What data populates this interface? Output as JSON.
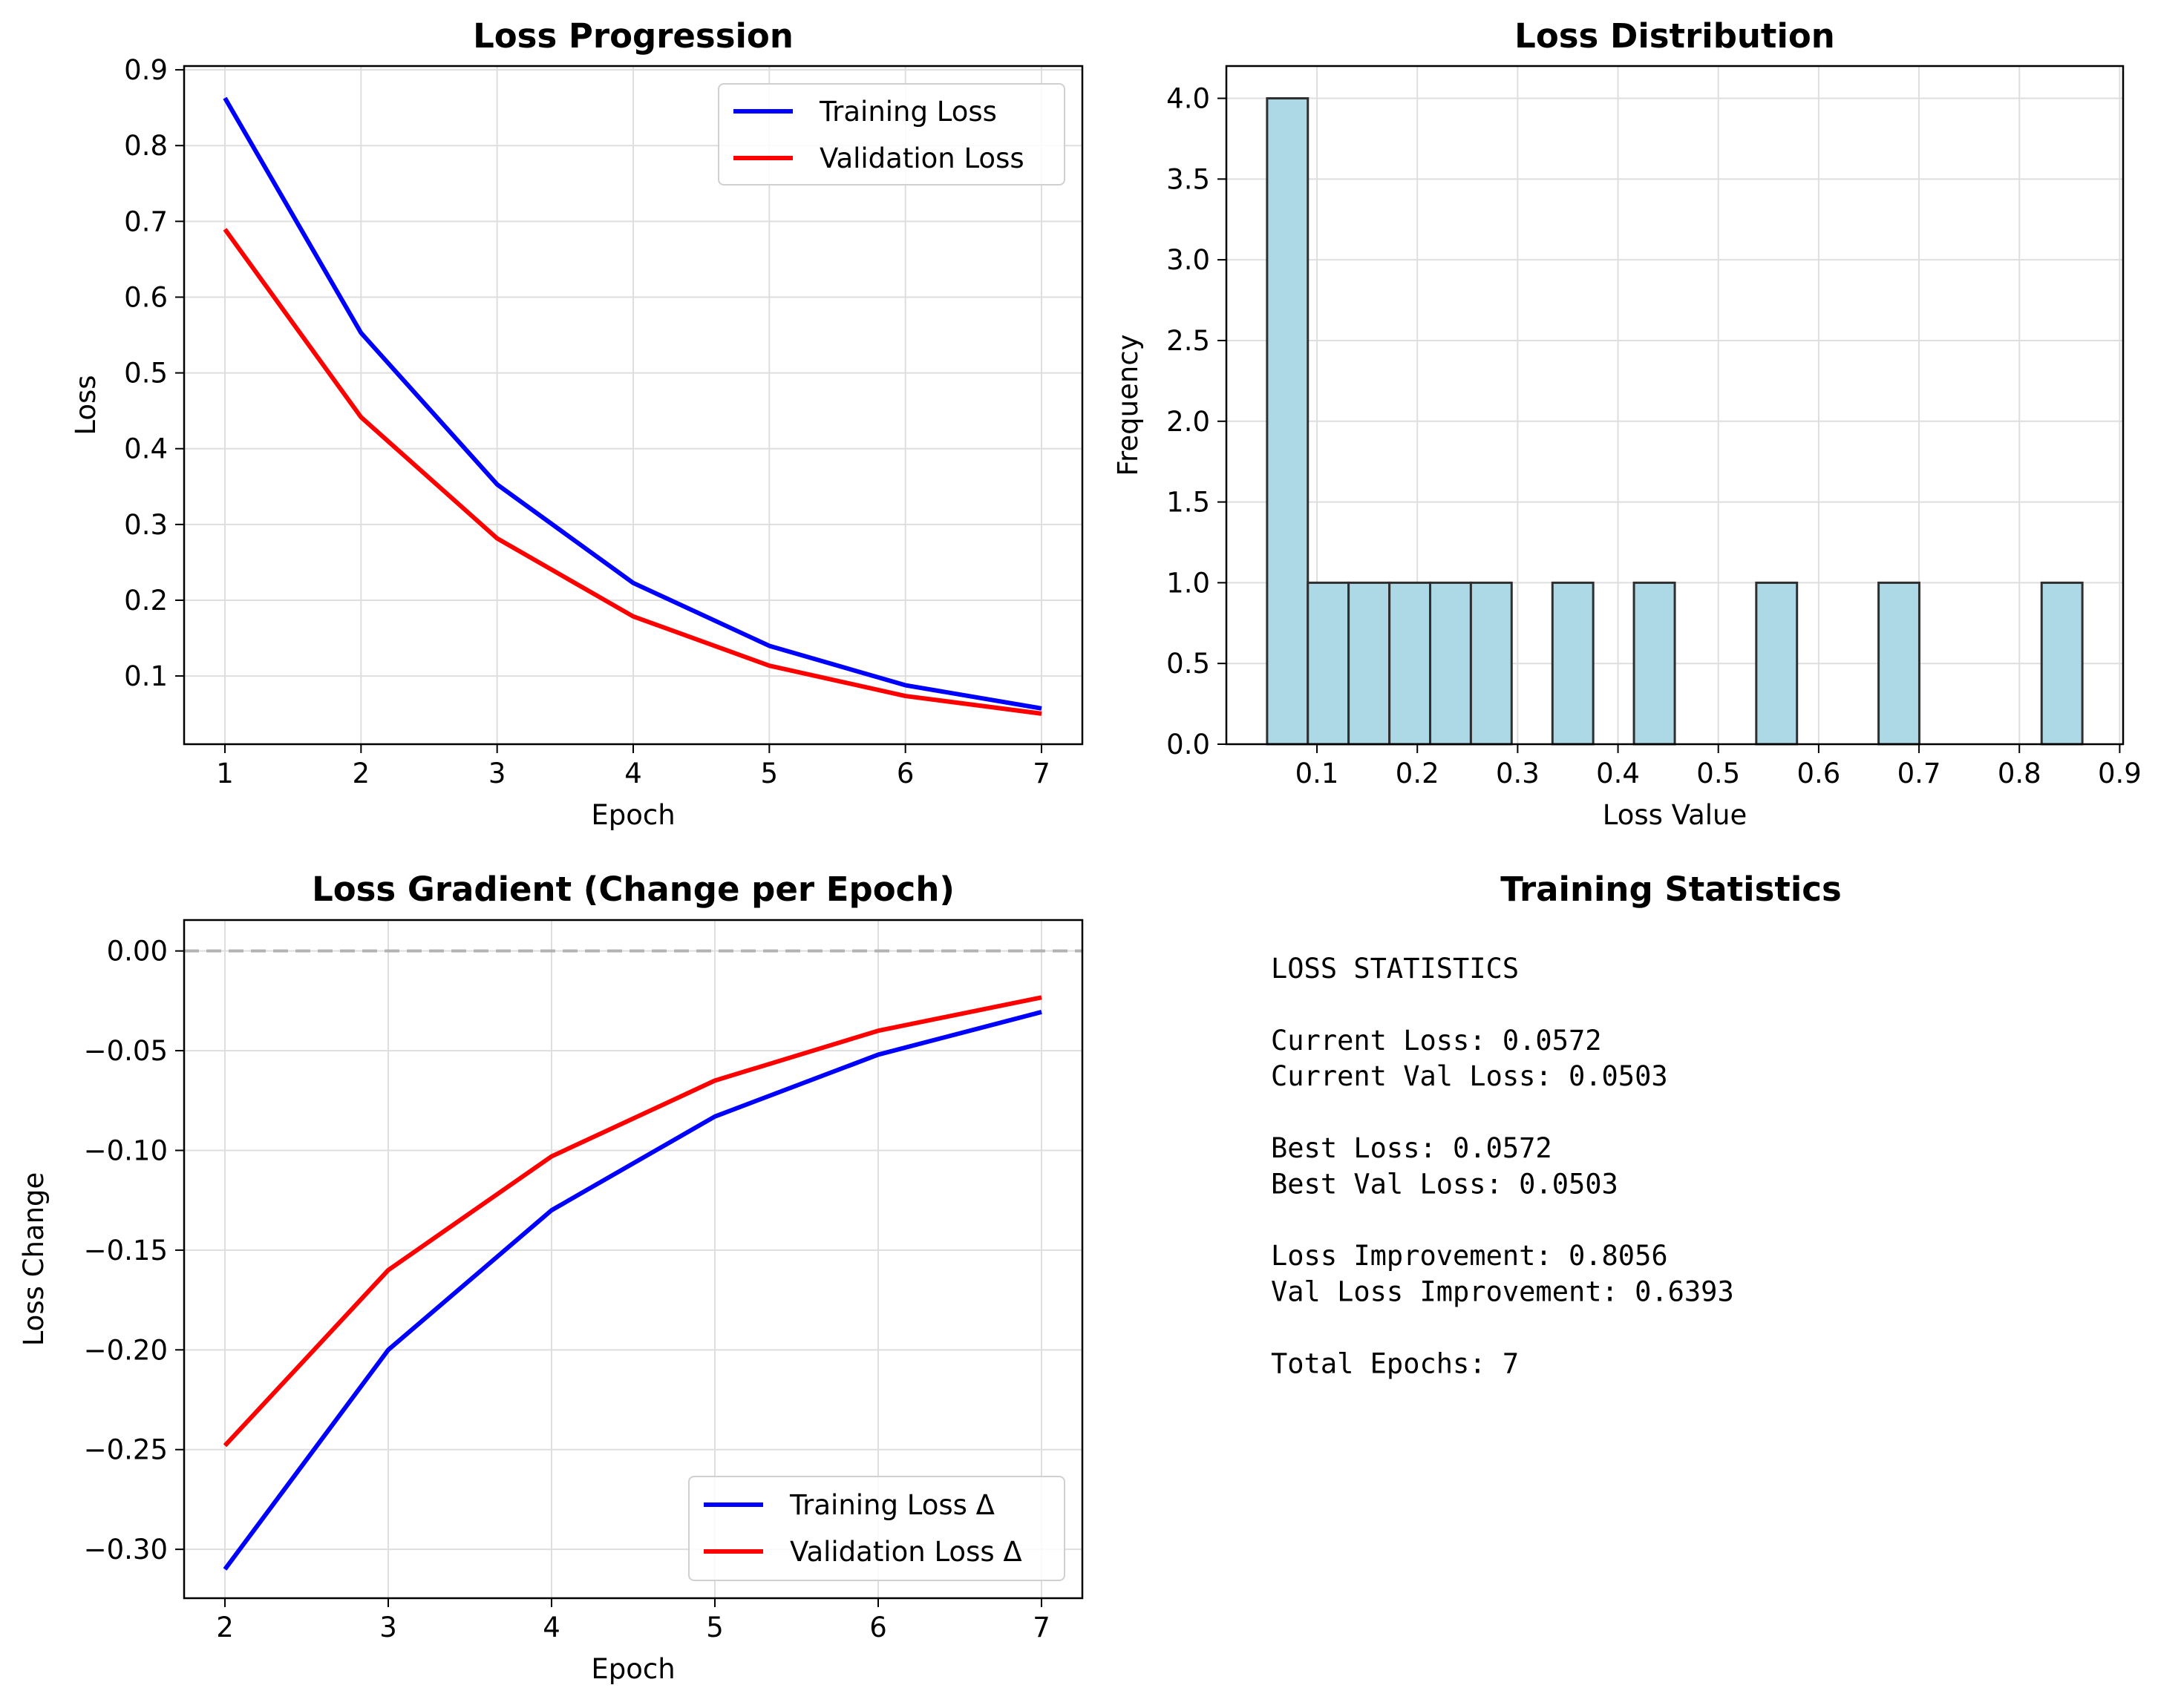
{
  "colors": {
    "training": "#0000ff",
    "validation": "#ff0000",
    "hist_fill": "#add8e6",
    "hist_edge": "#2f2f2f",
    "grid": "#dedede",
    "zero_line": "#b3b3b3"
  },
  "chart_data": [
    {
      "type": "line",
      "title": "Loss Progression",
      "xlabel": "Epoch",
      "ylabel": "Loss",
      "x": [
        1,
        2,
        3,
        4,
        5,
        6,
        7
      ],
      "xlim": [
        0.7,
        7.3
      ],
      "ylim": [
        0.01,
        0.905
      ],
      "xticks": [
        1,
        2,
        3,
        4,
        5,
        6,
        7
      ],
      "yticks": [
        0.1,
        0.2,
        0.3,
        0.4,
        0.5,
        0.6,
        0.7,
        0.8,
        0.9
      ],
      "ytick_labels": [
        "0.1",
        "0.2",
        "0.3",
        "0.4",
        "0.5",
        "0.6",
        "0.7",
        "0.8",
        "0.9"
      ],
      "series": [
        {
          "name": "Training Loss",
          "values": [
            0.8628,
            0.5528,
            0.3528,
            0.2228,
            0.1398,
            0.0878,
            0.0572
          ]
        },
        {
          "name": "Validation Loss",
          "values": [
            0.6896,
            0.4416,
            0.2816,
            0.1786,
            0.1136,
            0.0736,
            0.0503
          ]
        }
      ],
      "grid": true,
      "legend": "upper right"
    },
    {
      "type": "bar",
      "title": "Loss Distribution",
      "xlabel": "Loss Value",
      "ylabel": "Frequency",
      "bin_edges": [
        0.0503,
        0.0909,
        0.1315,
        0.1722,
        0.2128,
        0.2534,
        0.294,
        0.3347,
        0.3753,
        0.4159,
        0.4566,
        0.4972,
        0.5378,
        0.5784,
        0.619,
        0.6597,
        0.7003,
        0.7409,
        0.7816,
        0.8222,
        0.8628
      ],
      "values": [
        4,
        1,
        1,
        1,
        1,
        1,
        0,
        1,
        0,
        1,
        0,
        0,
        1,
        0,
        0,
        1,
        0,
        0,
        0,
        1
      ],
      "xlim": [
        0.0097,
        0.9034
      ],
      "ylim": [
        0,
        4.2
      ],
      "xticks": [
        0.1,
        0.2,
        0.3,
        0.4,
        0.5,
        0.6,
        0.7,
        0.8,
        0.9
      ],
      "xtick_labels": [
        "0.1",
        "0.2",
        "0.3",
        "0.4",
        "0.5",
        "0.6",
        "0.7",
        "0.8",
        "0.9"
      ],
      "yticks": [
        0,
        0.5,
        1,
        1.5,
        2,
        2.5,
        3,
        3.5,
        4
      ],
      "ytick_labels": [
        "0.0",
        "0.5",
        "1.0",
        "1.5",
        "2.0",
        "2.5",
        "3.0",
        "3.5",
        "4.0"
      ],
      "grid": true
    },
    {
      "type": "line",
      "title": "Loss Gradient (Change per Epoch)",
      "xlabel": "Epoch",
      "ylabel": "Loss Change",
      "x": [
        2,
        3,
        4,
        5,
        6,
        7
      ],
      "xlim": [
        1.75,
        7.25
      ],
      "ylim": [
        -0.3245,
        0.0155
      ],
      "xticks": [
        2,
        3,
        4,
        5,
        6,
        7
      ],
      "yticks": [
        0,
        -0.05,
        -0.1,
        -0.15,
        -0.2,
        -0.25,
        -0.3
      ],
      "ytick_labels": [
        "0.00",
        "−0.05",
        "−0.10",
        "−0.15",
        "−0.20",
        "−0.25",
        "−0.30"
      ],
      "series": [
        {
          "name": "Training Loss Δ",
          "values": [
            -0.31,
            -0.2,
            -0.13,
            -0.083,
            -0.052,
            -0.0306
          ]
        },
        {
          "name": "Validation Loss Δ",
          "values": [
            -0.248,
            -0.16,
            -0.103,
            -0.065,
            -0.04,
            -0.0233
          ]
        }
      ],
      "grid": true,
      "legend": "lower right"
    }
  ],
  "stats_panel": {
    "title": "Training Statistics",
    "lines": [
      "LOSS STATISTICS",
      "",
      "Current Loss: 0.0572",
      "Current Val Loss: 0.0503",
      "",
      "Best Loss: 0.0572",
      "Best Val Loss: 0.0503",
      "",
      "Loss Improvement: 0.8056",
      "Val Loss Improvement: 0.6393",
      "",
      "Total Epochs: 7"
    ]
  }
}
